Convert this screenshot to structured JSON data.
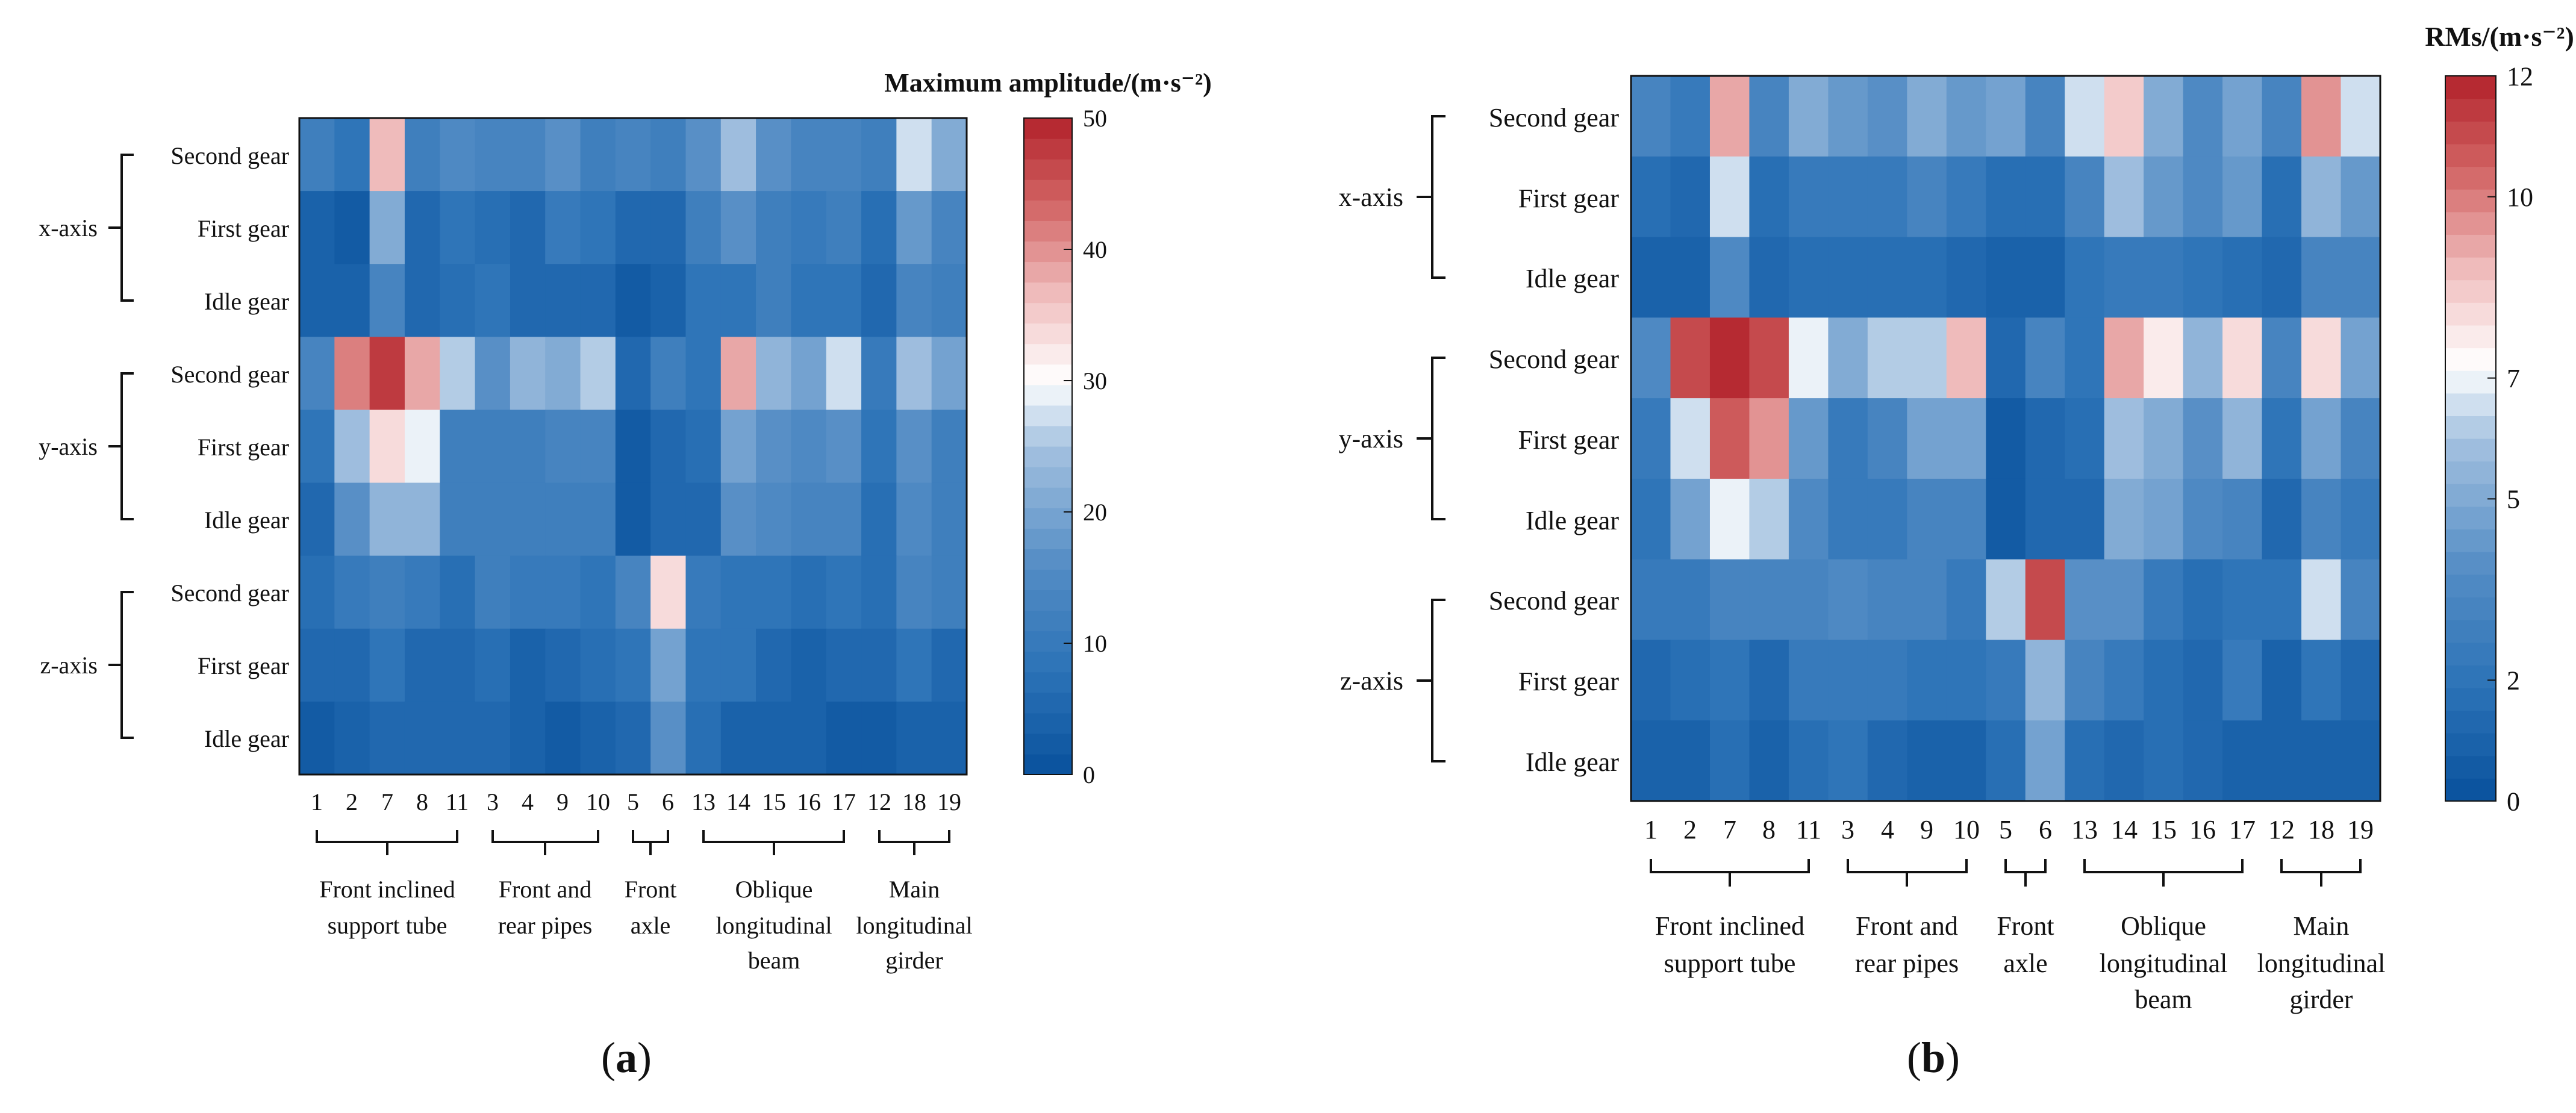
{
  "chart_data": [
    {
      "panel_label": "a",
      "type": "heatmap",
      "title": "Maximum amplitude/(m·s⁻²)",
      "colorbar": {
        "min": 0,
        "max": 50,
        "ticks": [
          0,
          10,
          20,
          30,
          40,
          50
        ],
        "colormap": "blue-white-red",
        "levels": 32
      },
      "x_tick_labels": [
        "1",
        "2",
        "7",
        "8",
        "11",
        "3",
        "4",
        "9",
        "10",
        "5",
        "6",
        "13",
        "14",
        "15",
        "16",
        "17",
        "12",
        "18",
        "19"
      ],
      "x_groups": [
        {
          "label_lines": [
            "Front inclined",
            "support tube"
          ]
        },
        {
          "label_lines": [
            "Front and",
            "rear pipes"
          ]
        },
        {
          "label_lines": [
            "Front",
            "axle"
          ]
        },
        {
          "label_lines": [
            "Oblique",
            "longitudinal",
            "beam"
          ]
        },
        {
          "label_lines": [
            "Main",
            "longitudinal",
            "girder"
          ]
        }
      ],
      "y_groups": [
        {
          "label": "x-axis",
          "rows": [
            "Second gear",
            "First gear",
            "Idle gear"
          ]
        },
        {
          "label": "y-axis",
          "rows": [
            "Second gear",
            "First gear",
            "Idle gear"
          ]
        },
        {
          "label": "z-axis",
          "rows": [
            "Second gear",
            "First gear",
            "Idle gear"
          ]
        }
      ],
      "values": [
        [
          11,
          8,
          37,
          11,
          15,
          13,
          13,
          17,
          12,
          13,
          11,
          16,
          24,
          16,
          14,
          14,
          11,
          27,
          21
        ],
        [
          4,
          3,
          21,
          6,
          9,
          7,
          6,
          10,
          9,
          5,
          6,
          12,
          16,
          12,
          10,
          12,
          7,
          18,
          14
        ],
        [
          4,
          4,
          13,
          6,
          7,
          8,
          6,
          6,
          5,
          3,
          4,
          8,
          8,
          11,
          8,
          8,
          6,
          14,
          12
        ],
        [
          13,
          42,
          47,
          39,
          26,
          16,
          22,
          21,
          25,
          6,
          11,
          9,
          38,
          22,
          19,
          28,
          10,
          24,
          19
        ],
        [
          8,
          24,
          33,
          29,
          12,
          11,
          11,
          14,
          14,
          3,
          6,
          7,
          19,
          16,
          15,
          16,
          9,
          16,
          12
        ],
        [
          6,
          17,
          22,
          22,
          11,
          11,
          11,
          11,
          12,
          3,
          5,
          6,
          17,
          15,
          13,
          14,
          7,
          15,
          12
        ],
        [
          7,
          10,
          11,
          10,
          7,
          11,
          10,
          10,
          8,
          14,
          34,
          10,
          8,
          9,
          7,
          8,
          7,
          14,
          11
        ],
        [
          5,
          5,
          8,
          6,
          6,
          7,
          4,
          6,
          7,
          8,
          19,
          9,
          9,
          5,
          4,
          5,
          6,
          8,
          5
        ],
        [
          3,
          4,
          5,
          5,
          5,
          5,
          4,
          2,
          4,
          5,
          17,
          7,
          4,
          4,
          4,
          2,
          2,
          4,
          4
        ]
      ]
    },
    {
      "panel_label": "b",
      "type": "heatmap",
      "title": "RMs/(m·s⁻²)",
      "colorbar": {
        "min": 0,
        "max": 12,
        "ticks": [
          0,
          2,
          5,
          7,
          10,
          12
        ],
        "colormap": "blue-white-red",
        "levels": 32
      },
      "x_tick_labels": [
        "1",
        "2",
        "7",
        "8",
        "11",
        "3",
        "4",
        "9",
        "10",
        "5",
        "6",
        "13",
        "14",
        "15",
        "16",
        "17",
        "12",
        "18",
        "19"
      ],
      "x_groups": [
        {
          "label_lines": [
            "Front inclined",
            "support tube"
          ]
        },
        {
          "label_lines": [
            "Front and",
            "rear pipes"
          ]
        },
        {
          "label_lines": [
            "Front",
            "axle"
          ]
        },
        {
          "label_lines": [
            "Oblique",
            "longitudinal",
            "beam"
          ]
        },
        {
          "label_lines": [
            "Main",
            "longitudinal",
            "girder"
          ]
        }
      ],
      "y_groups": [
        {
          "label": "x-axis",
          "rows": [
            "Second gear",
            "First gear",
            "Idle gear"
          ]
        },
        {
          "label": "y-axis",
          "rows": [
            "Second gear",
            "First gear",
            "Idle gear"
          ]
        },
        {
          "label": "z-axis",
          "rows": [
            "Second gear",
            "First gear",
            "Idle gear"
          ]
        }
      ],
      "values": [
        [
          3,
          2.5,
          9,
          3,
          5,
          4.3,
          4,
          5,
          4.2,
          4.8,
          3,
          6.5,
          8.5,
          5.2,
          3.5,
          4.6,
          3,
          9.5,
          6.6
        ],
        [
          1.5,
          1.2,
          6.5,
          1.5,
          2.5,
          2.3,
          2.3,
          3,
          2.3,
          1.5,
          1.5,
          3,
          5.8,
          4.2,
          3.4,
          4.3,
          1.5,
          5.5,
          4.2
        ],
        [
          1,
          1,
          3.5,
          1.2,
          1.7,
          1.7,
          1.5,
          1.7,
          1.4,
          1.1,
          1.1,
          2,
          2.5,
          2.6,
          2.1,
          1.5,
          1.4,
          3.3,
          3
        ]
      ],
      "values_rest": [
        [
          3.5,
          11,
          12,
          11,
          7,
          5,
          6.3,
          6,
          8.7,
          1.3,
          3,
          2,
          9,
          7.5,
          5.5,
          8,
          3,
          8,
          4.5
        ],
        [
          2.5,
          6.5,
          10.5,
          9.5,
          4.2,
          2.6,
          3,
          4.5,
          4.5,
          0.6,
          1.3,
          1.5,
          5.8,
          5,
          4,
          5.3,
          2,
          4.5,
          3.3
        ],
        [
          2,
          4.5,
          6.8,
          6,
          3.5,
          2.6,
          2.6,
          3,
          3,
          0.6,
          1.3,
          1.4,
          5,
          4.5,
          3.4,
          3.2,
          1.4,
          3.3,
          2.3
        ]
      ],
      "values_z": [
        [
          2.5,
          2.6,
          3.3,
          3,
          3,
          3.6,
          3,
          3,
          2.6,
          6,
          11,
          4,
          4,
          2.6,
          1.5,
          2,
          2,
          6.5,
          3
        ],
        [
          1.3,
          1.5,
          2,
          1.4,
          2.3,
          2.3,
          2.3,
          2,
          2.2,
          2.3,
          5.5,
          3,
          2.6,
          1.7,
          1.3,
          2.3,
          0.9,
          2,
          1.3
        ],
        [
          1,
          1,
          1.7,
          1,
          1.5,
          2,
          1.2,
          1,
          1,
          1.5,
          4.5,
          1.5,
          1.4,
          1.5,
          1.3,
          1,
          0.8,
          1,
          1
        ]
      ]
    }
  ]
}
